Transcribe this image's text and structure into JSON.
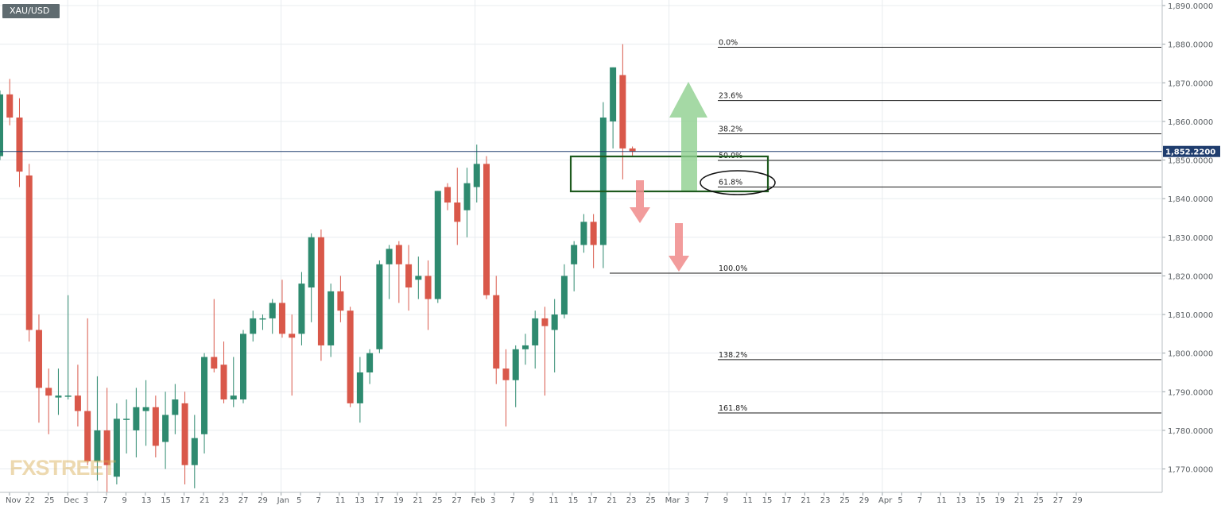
{
  "symbol": "XAU/USD",
  "watermark": "FXSTREET",
  "price_tag": "1,852.2200",
  "colors": {
    "up": "#2e8a6f",
    "down": "#d9584a",
    "grid": "#e8ecef",
    "price_line": "#1f3d6e",
    "up_arrow": "#8fcf8f",
    "down_arrow": "#f08b8b",
    "zone": "#1e5a1e"
  },
  "icons": [
    "arrow-up-icon",
    "arrow-down-icon"
  ],
  "chart_data": {
    "type": "candlestick",
    "ylim": [
      1764,
      1891
    ],
    "y_ticks": [
      {
        "value": 1890,
        "label": "1,890.0000"
      },
      {
        "value": 1880,
        "label": "1,880.0000"
      },
      {
        "value": 1870,
        "label": "1,870.0000"
      },
      {
        "value": 1860,
        "label": "1,860.0000"
      },
      {
        "value": 1850,
        "label": "1,850.0000"
      },
      {
        "value": 1840,
        "label": "1,840.0000"
      },
      {
        "value": 1830,
        "label": "1,830.0000"
      },
      {
        "value": 1820,
        "label": "1,820.0000"
      },
      {
        "value": 1810,
        "label": "1,810.0000"
      },
      {
        "value": 1800,
        "label": "1,800.0000"
      },
      {
        "value": 1790,
        "label": "1,790.0000"
      },
      {
        "value": 1780,
        "label": "1,780.0000"
      },
      {
        "value": 1770,
        "label": "1,770.0000"
      }
    ],
    "x_ticks": [
      "Nov",
      "22",
      "25",
      "Dec",
      "3",
      "7",
      "9",
      "13",
      "15",
      "17",
      "21",
      "23",
      "27",
      "29",
      "Jan",
      "5",
      "7",
      "11",
      "13",
      "17",
      "19",
      "21",
      "25",
      "27",
      "Feb",
      "3",
      "7",
      "9",
      "11",
      "15",
      "17",
      "21",
      "23",
      "25",
      "Mar",
      "3",
      "7",
      "9",
      "11",
      "15",
      "17",
      "21",
      "23",
      "25",
      "29",
      "Apr",
      "5",
      "7",
      "11",
      "13",
      "15",
      "19",
      "21",
      "25",
      "27",
      "29"
    ],
    "last_price": 1852.22,
    "candles": [
      {
        "o": 1851.0,
        "h": 1868.0,
        "l": 1850.0,
        "c": 1867.0
      },
      {
        "o": 1867.0,
        "h": 1871.0,
        "l": 1859.0,
        "c": 1861.0
      },
      {
        "o": 1861.0,
        "h": 1866.0,
        "l": 1843.0,
        "c": 1847.0
      },
      {
        "o": 1846.0,
        "h": 1849.0,
        "l": 1803.0,
        "c": 1806.0
      },
      {
        "o": 1806.0,
        "h": 1810.0,
        "l": 1782.0,
        "c": 1791.0
      },
      {
        "o": 1791.0,
        "h": 1796.0,
        "l": 1779.0,
        "c": 1789.0
      },
      {
        "o": 1788.5,
        "h": 1796.0,
        "l": 1784.0,
        "c": 1789.0
      },
      {
        "o": 1789.0,
        "h": 1815.0,
        "l": 1788.0,
        "c": 1789.0
      },
      {
        "o": 1789.0,
        "h": 1797.0,
        "l": 1781.0,
        "c": 1785.0
      },
      {
        "o": 1785.0,
        "h": 1809.0,
        "l": 1771.0,
        "c": 1772.0
      },
      {
        "o": 1772.0,
        "h": 1794.0,
        "l": 1767.0,
        "c": 1780.0
      },
      {
        "o": 1780.0,
        "h": 1791.0,
        "l": 1764.0,
        "c": 1771.0
      },
      {
        "o": 1768.0,
        "h": 1787.0,
        "l": 1766.0,
        "c": 1783.0
      },
      {
        "o": 1783.0,
        "h": 1788.0,
        "l": 1774.0,
        "c": 1783.0
      },
      {
        "o": 1780.0,
        "h": 1791.0,
        "l": 1773.0,
        "c": 1786.0
      },
      {
        "o": 1785.0,
        "h": 1793.0,
        "l": 1776.0,
        "c": 1786.0
      },
      {
        "o": 1786.0,
        "h": 1789.0,
        "l": 1773.0,
        "c": 1776.0
      },
      {
        "o": 1777.0,
        "h": 1790.0,
        "l": 1770.0,
        "c": 1784.0
      },
      {
        "o": 1784.0,
        "h": 1792.0,
        "l": 1779.0,
        "c": 1788.0
      },
      {
        "o": 1787.0,
        "h": 1790.0,
        "l": 1766.0,
        "c": 1771.0
      },
      {
        "o": 1771.0,
        "h": 1784.0,
        "l": 1765.0,
        "c": 1778.0
      },
      {
        "o": 1779.0,
        "h": 1800.0,
        "l": 1774.0,
        "c": 1799.0
      },
      {
        "o": 1799.0,
        "h": 1814.0,
        "l": 1795.0,
        "c": 1796.0
      },
      {
        "o": 1797.0,
        "h": 1803.0,
        "l": 1787.0,
        "c": 1788.0
      },
      {
        "o": 1788.0,
        "h": 1799.0,
        "l": 1786.0,
        "c": 1789.0
      },
      {
        "o": 1788.0,
        "h": 1806.0,
        "l": 1787.0,
        "c": 1805.0
      },
      {
        "o": 1805.0,
        "h": 1811.0,
        "l": 1803.0,
        "c": 1809.0
      },
      {
        "o": 1809.0,
        "h": 1810.0,
        "l": 1806.0,
        "c": 1809.0
      },
      {
        "o": 1809.0,
        "h": 1814.0,
        "l": 1805.0,
        "c": 1813.0
      },
      {
        "o": 1813.0,
        "h": 1819.0,
        "l": 1804.0,
        "c": 1805.0
      },
      {
        "o": 1805.0,
        "h": 1810.0,
        "l": 1789.0,
        "c": 1804.0
      },
      {
        "o": 1805.0,
        "h": 1821.0,
        "l": 1802.0,
        "c": 1818.0
      },
      {
        "o": 1817.0,
        "h": 1831.0,
        "l": 1808.0,
        "c": 1830.0
      },
      {
        "o": 1830.0,
        "h": 1832.0,
        "l": 1798.0,
        "c": 1802.0
      },
      {
        "o": 1802.0,
        "h": 1818.0,
        "l": 1799.0,
        "c": 1816.0
      },
      {
        "o": 1816.0,
        "h": 1820.0,
        "l": 1808.0,
        "c": 1811.0
      },
      {
        "o": 1811.0,
        "h": 1812.0,
        "l": 1786.0,
        "c": 1787.0
      },
      {
        "o": 1787.0,
        "h": 1799.0,
        "l": 1782.0,
        "c": 1795.0
      },
      {
        "o": 1795.0,
        "h": 1801.0,
        "l": 1792.0,
        "c": 1800.0
      },
      {
        "o": 1801.0,
        "h": 1824.0,
        "l": 1800.0,
        "c": 1823.0
      },
      {
        "o": 1823.0,
        "h": 1828.0,
        "l": 1814.0,
        "c": 1827.0
      },
      {
        "o": 1828.0,
        "h": 1829.0,
        "l": 1813.0,
        "c": 1823.0
      },
      {
        "o": 1823.0,
        "h": 1828.0,
        "l": 1811.0,
        "c": 1817.0
      },
      {
        "o": 1819.0,
        "h": 1825.0,
        "l": 1814.0,
        "c": 1820.0
      },
      {
        "o": 1820.0,
        "h": 1824.0,
        "l": 1806.0,
        "c": 1814.0
      },
      {
        "o": 1814.0,
        "h": 1842.0,
        "l": 1813.0,
        "c": 1842.0
      },
      {
        "o": 1843.0,
        "h": 1844.0,
        "l": 1837.0,
        "c": 1839.0
      },
      {
        "o": 1839.0,
        "h": 1848.0,
        "l": 1828.0,
        "c": 1834.0
      },
      {
        "o": 1837.0,
        "h": 1848.0,
        "l": 1830.0,
        "c": 1844.0
      },
      {
        "o": 1843.0,
        "h": 1854.0,
        "l": 1839.0,
        "c": 1849.0
      },
      {
        "o": 1849.0,
        "h": 1851.0,
        "l": 1814.0,
        "c": 1815.0
      },
      {
        "o": 1815.0,
        "h": 1820.0,
        "l": 1792.0,
        "c": 1796.0
      },
      {
        "o": 1796.0,
        "h": 1801.0,
        "l": 1781.0,
        "c": 1793.0
      },
      {
        "o": 1793.0,
        "h": 1802.0,
        "l": 1786.0,
        "c": 1801.0
      },
      {
        "o": 1801.0,
        "h": 1805.0,
        "l": 1797.0,
        "c": 1802.0
      },
      {
        "o": 1802.0,
        "h": 1811.0,
        "l": 1796.0,
        "c": 1809.0
      },
      {
        "o": 1809.0,
        "h": 1812.0,
        "l": 1789.0,
        "c": 1807.0
      },
      {
        "o": 1806.0,
        "h": 1814.0,
        "l": 1795.0,
        "c": 1810.0
      },
      {
        "o": 1810.0,
        "h": 1823.0,
        "l": 1809.0,
        "c": 1820.0
      },
      {
        "o": 1823.0,
        "h": 1829.0,
        "l": 1816.0,
        "c": 1828.0
      },
      {
        "o": 1828.0,
        "h": 1836.0,
        "l": 1826.0,
        "c": 1834.0
      },
      {
        "o": 1834.0,
        "h": 1836.0,
        "l": 1822.0,
        "c": 1828.0
      },
      {
        "o": 1828.0,
        "h": 1865.0,
        "l": 1822.0,
        "c": 1861.0
      },
      {
        "o": 1860.0,
        "h": 1874.0,
        "l": 1853.0,
        "c": 1874.0
      },
      {
        "o": 1872.0,
        "h": 1880.0,
        "l": 1845.0,
        "c": 1853.0
      },
      {
        "o": 1853.0,
        "h": 1853.5,
        "l": 1851.0,
        "c": 1852.2
      }
    ],
    "fibonacci": [
      {
        "label": "0.0%",
        "value": 1879.2
      },
      {
        "label": "23.6%",
        "value": 1865.4
      },
      {
        "label": "38.2%",
        "value": 1856.8
      },
      {
        "label": "50.0%",
        "value": 1849.9
      },
      {
        "label": "61.8%",
        "value": 1843.0
      },
      {
        "label": "100.0%",
        "value": 1820.7
      },
      {
        "label": "138.2%",
        "value": 1798.3
      },
      {
        "label": "161.8%",
        "value": 1784.5
      }
    ]
  }
}
